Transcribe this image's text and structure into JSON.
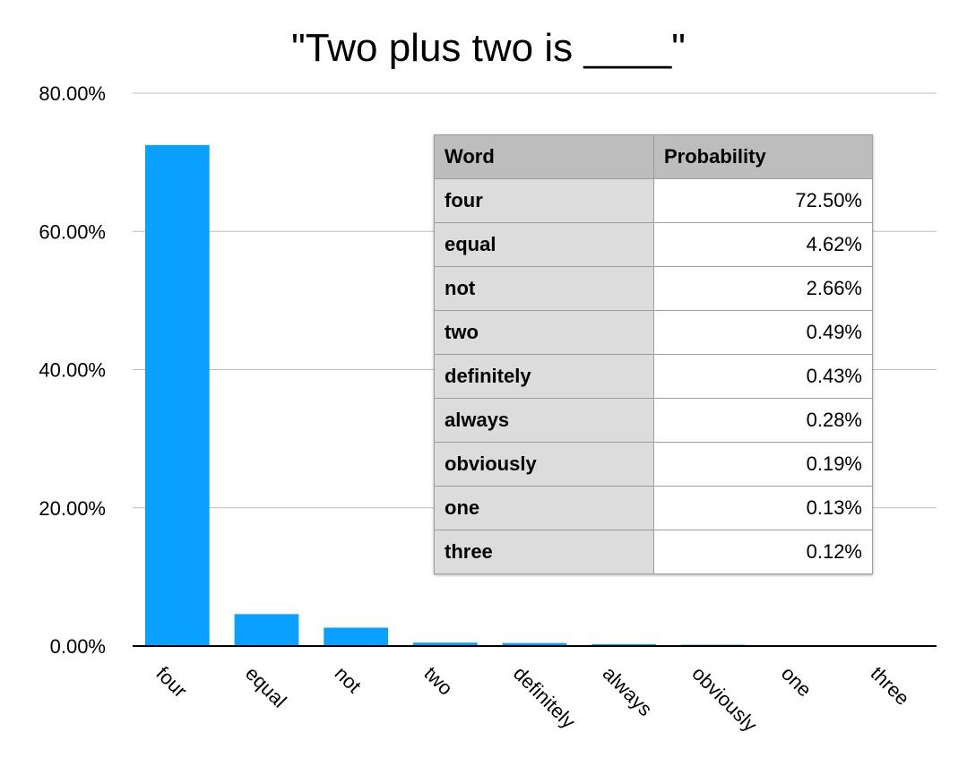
{
  "chart_data": {
    "type": "bar",
    "title": "\"Two plus two is ____\"",
    "categories": [
      "four",
      "equal",
      "not",
      "two",
      "definitely",
      "always",
      "obviously",
      "one",
      "three"
    ],
    "values": [
      72.5,
      4.62,
      2.66,
      0.49,
      0.43,
      0.28,
      0.19,
      0.13,
      0.12
    ],
    "ylim": [
      0,
      80
    ],
    "yticks": [
      "0.00%",
      "20.00%",
      "40.00%",
      "60.00%",
      "80.00%"
    ],
    "grid": true,
    "bar_color": "#0aa0ff",
    "xlabel": "",
    "ylabel": ""
  },
  "table": {
    "headers": [
      "Word",
      "Probability"
    ],
    "rows": [
      [
        "four",
        "72.50%"
      ],
      [
        "equal",
        "4.62%"
      ],
      [
        "not",
        "2.66%"
      ],
      [
        "two",
        "0.49%"
      ],
      [
        "definitely",
        "0.43%"
      ],
      [
        "always",
        "0.28%"
      ],
      [
        "obviously",
        "0.19%"
      ],
      [
        "one",
        "0.13%"
      ],
      [
        "three",
        "0.12%"
      ]
    ]
  }
}
